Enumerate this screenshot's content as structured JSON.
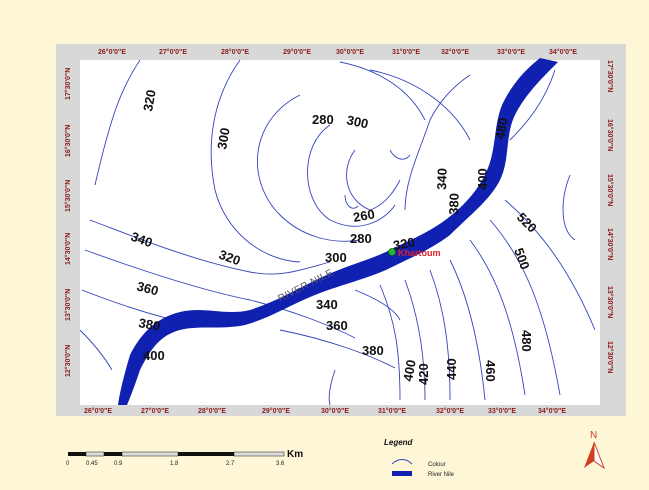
{
  "colors": {
    "background": "#fdf7d8",
    "frame": "#d8d8d8",
    "map_area": "#ffffff",
    "contour": "#3344bb",
    "river": "#1020b0",
    "tick_text": "#8b1a1a",
    "city": "#e0202a",
    "north_arrow": "#d04020"
  },
  "top_ticks": [
    "26°0'0\"E",
    "27°0'0\"E",
    "28°0'0\"E",
    "29°0'0\"E",
    "30°0'0\"E",
    "31°0'0\"E",
    "32°0'0\"E",
    "33°0'0\"E",
    "34°0'0\"E"
  ],
  "bottom_ticks": [
    "26°0'0\"E",
    "27°0'0\"E",
    "28°0'0\"E",
    "29°0'0\"E",
    "30°0'0\"E",
    "31°0'0\"E",
    "32°0'0\"E",
    "33°0'0\"E",
    "34°0'0\"E"
  ],
  "left_ticks": [
    "17°30'0\"N",
    "16°30'0\"N",
    "15°30'0\"N",
    "14°30'0\"N",
    "13°30'0\"N",
    "12°30'0\"N"
  ],
  "right_ticks": [
    "17°30'0\"N",
    "16°30'0\"N",
    "15°30'0\"N",
    "14°30'0\"N",
    "13°30'0\"N",
    "12°30'0\"N"
  ],
  "contour_labels": [
    "320",
    "300",
    "300",
    "280",
    "340",
    "320",
    "260",
    "280",
    "300",
    "320",
    "360",
    "380",
    "340",
    "360",
    "400",
    "380",
    "400",
    "420",
    "440",
    "460",
    "480",
    "500",
    "520",
    "480",
    "340",
    "380",
    "400"
  ],
  "river_label": "RIVER NILE",
  "city_label": "Khartoum",
  "scale_bar": {
    "unit": "Km",
    "labels": [
      "0",
      "0.45",
      "0.9",
      "1.8",
      "2.7",
      "3.6"
    ]
  },
  "legend": {
    "title": "Legend",
    "items": [
      "Colour",
      "River Nile"
    ]
  },
  "north_label": "N"
}
